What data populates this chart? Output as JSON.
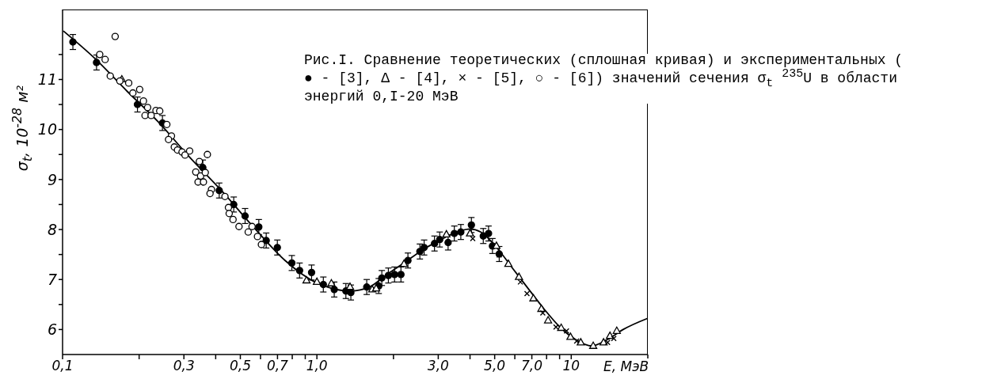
{
  "chart_data": {
    "type": "scatter",
    "title": "Рис.I. Сравнение теоретических (сплошная кривая) и экспериментальных ( ● - [3], Δ - [4], × - [5], ○ - [6]) значений сечения σ$_{t}$ $^{235}$U в области энергий 0,I-20 МэВ",
    "xlabel": "E, МэВ",
    "ylabel": "σ$_{t}$, 10$^{-28}$ м²",
    "log": "x",
    "xlim": [
      0.1,
      20
    ],
    "xticks": [
      {
        "value": 0.1,
        "label": "0,1"
      },
      {
        "value": 0.2,
        "label": null
      },
      {
        "value": 0.3,
        "label": "0,3"
      },
      {
        "value": 0.4,
        "label": null
      },
      {
        "value": 0.5,
        "label": "0,5"
      },
      {
        "value": 0.6,
        "label": null
      },
      {
        "value": 0.7,
        "label": "0,7"
      },
      {
        "value": 0.8,
        "label": null
      },
      {
        "value": 0.9,
        "label": null
      },
      {
        "value": 1,
        "label": "1,0"
      },
      {
        "value": 2,
        "label": null
      },
      {
        "value": 3,
        "label": "3,0"
      },
      {
        "value": 4,
        "label": null
      },
      {
        "value": 5,
        "label": "5,0"
      },
      {
        "value": 6,
        "label": null
      },
      {
        "value": 7,
        "label": "7,0"
      },
      {
        "value": 8,
        "label": null
      },
      {
        "value": 9,
        "label": null
      },
      {
        "value": 10,
        "label": "10"
      },
      {
        "value": 20,
        "label": null
      }
    ],
    "ylim": [
      5.5,
      12.4
    ],
    "yticks": [
      6,
      {
        "value": 6.5,
        "label": null
      },
      7,
      {
        "value": 7.5,
        "label": null
      },
      8,
      {
        "value": 8.5,
        "label": null
      },
      9,
      {
        "value": 9.5,
        "label": null
      },
      10,
      {
        "value": 10.5,
        "label": null
      },
      11,
      {
        "value": 11.5,
        "label": null
      }
    ],
    "series": [
      {
        "type": "line",
        "color": "#000000",
        "marker": "none",
        "line_style": "solid",
        "x": [
          0.1007,
          0.134,
          0.179,
          0.238,
          0.318,
          0.423,
          0.563,
          0.75,
          1.0,
          1.15,
          1.36,
          1.61,
          1.86,
          2.2,
          2.6,
          3.08,
          3.64,
          4.0,
          4.41,
          5.09,
          5.87,
          6.77,
          7.82,
          9.02,
          10.4,
          12.0,
          13.9,
          16.0,
          19.9
        ],
        "values": [
          11.97,
          11.42,
          10.77,
          10.15,
          9.43,
          8.77,
          8.05,
          7.38,
          6.93,
          6.82,
          6.77,
          6.85,
          7.08,
          7.33,
          7.59,
          7.8,
          7.97,
          8.01,
          7.95,
          7.64,
          7.23,
          6.82,
          6.41,
          6.05,
          5.8,
          5.67,
          5.8,
          6.0,
          6.22
        ]
      },
      {
        "color": "#000000",
        "marker": "circle",
        "x": [
          0.1098,
          0.136,
          0.197,
          0.247,
          0.356,
          0.413,
          0.471,
          0.522,
          0.591,
          0.632,
          0.699,
          0.797,
          0.855,
          0.953,
          1.06,
          1.17,
          1.3,
          1.36,
          1.57,
          1.75,
          1.8,
          1.91,
          2.02,
          2.14,
          2.28,
          2.54,
          2.64,
          2.9,
          3.04,
          3.28,
          3.47,
          3.68,
          4.05,
          4.51,
          4.73,
          4.9,
          5.21
        ],
        "values": [
          11.75,
          11.34,
          10.5,
          10.13,
          9.24,
          8.78,
          8.5,
          8.27,
          8.05,
          7.78,
          7.64,
          7.33,
          7.18,
          7.14,
          6.9,
          6.8,
          6.77,
          6.74,
          6.85,
          6.87,
          7.03,
          7.08,
          7.1,
          7.1,
          7.38,
          7.56,
          7.64,
          7.72,
          7.8,
          7.74,
          7.92,
          7.95,
          8.09,
          7.87,
          7.92,
          7.67,
          7.51
        ],
        "errors": [
          0.15,
          0.15,
          0.15,
          0.15,
          0.15,
          0.15,
          0.15,
          0.15,
          0.15,
          0.15,
          0.15,
          0.15,
          0.15,
          0.15,
          0.15,
          0.15,
          0.15,
          0.15,
          0.15,
          0.15,
          0.15,
          0.15,
          0.15,
          0.15,
          0.15,
          0.15,
          0.15,
          0.15,
          0.15,
          0.15,
          0.15,
          0.15,
          0.15,
          0.15,
          0.15,
          0.15,
          0.15
        ]
      },
      {
        "color": "#000000",
        "marker": "triangle",
        "x": [
          0.171,
          0.91,
          1.0,
          1.14,
          1.35,
          1.65,
          1.71,
          2.2,
          3.23,
          4.0,
          5.08,
          5.66,
          6.23,
          7.1,
          7.63,
          8.11,
          9.13,
          9.93,
          10.9,
          12.2,
          13.4,
          14.2,
          15.1
        ],
        "values": [
          11.0,
          6.98,
          6.95,
          6.92,
          6.85,
          6.8,
          6.82,
          7.31,
          7.9,
          7.92,
          7.67,
          7.31,
          7.05,
          6.62,
          6.41,
          6.18,
          6.03,
          5.85,
          5.74,
          5.67,
          5.74,
          5.87,
          5.97
        ]
      },
      {
        "color": "#000000",
        "marker": "cross",
        "x": [
          4.1,
          5.21,
          6.31,
          6.7,
          7.73,
          8.71,
          9.58,
          10.5,
          13.9,
          14.7
        ],
        "values": [
          7.82,
          7.49,
          6.95,
          6.72,
          6.33,
          6.05,
          5.97,
          5.77,
          5.74,
          5.82
        ]
      },
      {
        "color": "#000000",
        "marker": "circle",
        "x": [
          0.161,
          0.14,
          0.147,
          0.154,
          0.168,
          0.182,
          0.189,
          0.201,
          0.208,
          0.211,
          0.216,
          0.223,
          0.233,
          0.241,
          0.257,
          0.268,
          0.261,
          0.275,
          0.283,
          0.295,
          0.303,
          0.316,
          0.371,
          0.345,
          0.334,
          0.349,
          0.364,
          0.341,
          0.358,
          0.385,
          0.38,
          0.435,
          0.449,
          0.452,
          0.468,
          0.494,
          0.537,
          0.556,
          0.605,
          0.584
        ],
        "values": [
          11.86,
          11.5,
          11.4,
          11.07,
          10.97,
          10.93,
          10.73,
          10.8,
          10.57,
          10.28,
          10.44,
          10.28,
          10.38,
          10.37,
          10.1,
          9.87,
          9.8,
          9.65,
          9.59,
          9.55,
          9.49,
          9.57,
          9.5,
          9.36,
          9.15,
          9.07,
          9.14,
          8.95,
          8.95,
          8.8,
          8.72,
          8.66,
          8.44,
          8.32,
          8.2,
          8.06,
          7.95,
          8.06,
          7.7,
          7.86
        ]
      }
    ]
  }
}
